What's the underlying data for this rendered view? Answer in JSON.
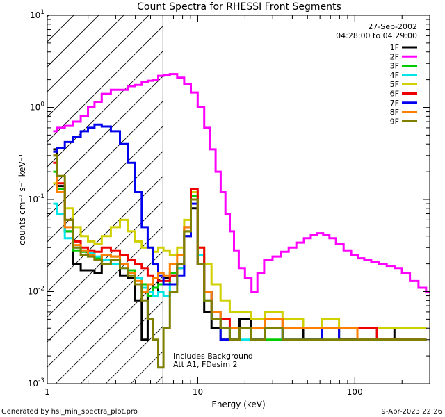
{
  "chart_data": {
    "type": "line",
    "title": "Count Spectra for RHESSI Front Segments",
    "xlabel": "Energy (keV)",
    "ylabel": "counts cm⁻² s⁻¹ keV⁻¹",
    "xscale": "log",
    "yscale": "log",
    "xlim": [
      1.1,
      300
    ],
    "ylim": [
      0.001,
      10
    ],
    "x_ticks": [
      {
        "value": 1,
        "label": "1"
      },
      {
        "value": 10,
        "label": "10"
      },
      {
        "value": 100,
        "label": "100"
      }
    ],
    "y_ticks": [
      {
        "value": 10,
        "base": "10",
        "exp": "1"
      },
      {
        "value": 1,
        "base": "10",
        "exp": "0"
      },
      {
        "value": 0.1,
        "base": "10",
        "exp": "-1"
      },
      {
        "value": 0.01,
        "base": "10",
        "exp": "-2"
      },
      {
        "value": 0.001,
        "base": "10",
        "exp": "-3"
      }
    ],
    "date": "27-Sep-2002",
    "time_range": "04:28:00 to 04:29:00",
    "annotation_lines": [
      "Includes Background",
      "Att A1, FDesim 2"
    ],
    "excluded_region": {
      "from": 1.1,
      "to": 6.0
    },
    "series": [
      {
        "name": "1F",
        "color": "#000000",
        "x": [
          1.2,
          1.35,
          1.5,
          1.7,
          1.9,
          2.1,
          2.3,
          2.6,
          3.0,
          3.4,
          3.8,
          4.2,
          4.6,
          5.0,
          5.4,
          5.8,
          6.3,
          7.0,
          7.8,
          8.6,
          9.5,
          10.5,
          11.5,
          13,
          15,
          17,
          20,
          24,
          30,
          40,
          55,
          70,
          90,
          120,
          160,
          200,
          270
        ],
        "y": [
          0.35,
          0.14,
          0.045,
          0.02,
          0.017,
          0.017,
          0.016,
          0.02,
          0.02,
          0.015,
          0.014,
          0.008,
          0.003,
          0.012,
          0.009,
          0.016,
          0.014,
          0.015,
          0.018,
          0.04,
          0.08,
          0.02,
          0.006,
          0.004,
          0.003,
          0.004,
          0.005,
          0.003,
          0.004,
          0.004,
          0.003,
          0.004,
          0.003,
          0.003,
          0.004,
          0.003,
          0.003
        ]
      },
      {
        "name": "2F",
        "color": "#ff00ff",
        "x": [
          1.2,
          1.35,
          1.5,
          1.7,
          1.9,
          2.1,
          2.3,
          2.6,
          3.0,
          3.4,
          3.8,
          4.2,
          4.6,
          5.0,
          5.4,
          5.8,
          6.3,
          7.0,
          7.8,
          8.6,
          9.5,
          10.5,
          11.5,
          12.5,
          13.5,
          14.5,
          15.5,
          16.5,
          17.5,
          19,
          21,
          23,
          25,
          28,
          32,
          36,
          40,
          45,
          50,
          55,
          60,
          66,
          72,
          80,
          90,
          100,
          110,
          120,
          135,
          150,
          170,
          190,
          210,
          240,
          270,
          300
        ],
        "y": [
          0.55,
          0.6,
          0.63,
          0.7,
          0.8,
          1.0,
          1.15,
          1.4,
          1.55,
          1.55,
          1.7,
          1.75,
          1.9,
          1.95,
          2.0,
          2.2,
          2.25,
          2.3,
          2.1,
          1.8,
          1.45,
          1.0,
          0.6,
          0.35,
          0.2,
          0.12,
          0.07,
          0.045,
          0.028,
          0.018,
          0.014,
          0.01,
          0.016,
          0.022,
          0.024,
          0.027,
          0.03,
          0.034,
          0.038,
          0.041,
          0.043,
          0.041,
          0.038,
          0.033,
          0.028,
          0.025,
          0.023,
          0.022,
          0.021,
          0.02,
          0.019,
          0.018,
          0.016,
          0.013,
          0.011,
          0.01
        ]
      },
      {
        "name": "3F",
        "color": "#00cc00",
        "x": [
          1.2,
          1.35,
          1.5,
          1.7,
          1.9,
          2.1,
          2.3,
          2.6,
          3.0,
          3.4,
          3.8,
          4.2,
          4.6,
          5.0,
          5.4,
          5.8,
          6.3,
          7.0,
          7.8,
          8.6,
          9.5,
          10.5,
          11.5,
          13,
          15,
          17,
          20,
          24,
          30,
          40,
          55,
          70,
          90,
          120,
          160,
          200,
          270
        ],
        "y": [
          0.2,
          0.13,
          0.045,
          0.028,
          0.027,
          0.026,
          0.023,
          0.025,
          0.024,
          0.02,
          0.017,
          0.014,
          0.012,
          0.009,
          0.011,
          0.012,
          0.012,
          0.016,
          0.02,
          0.045,
          0.11,
          0.025,
          0.008,
          0.005,
          0.004,
          0.003,
          0.004,
          0.004,
          0.003,
          0.004,
          0.004,
          0.003,
          0.004,
          0.003,
          0.003,
          0.003,
          0.003
        ]
      },
      {
        "name": "4F",
        "color": "#00e5e5",
        "x": [
          1.2,
          1.35,
          1.5,
          1.7,
          1.9,
          2.1,
          2.3,
          2.6,
          3.0,
          3.4,
          3.8,
          4.2,
          4.6,
          5.0,
          5.4,
          5.8,
          6.3,
          7.0,
          7.8,
          8.6,
          9.5,
          10.5,
          11.5,
          13,
          15,
          17,
          20,
          24,
          30,
          40,
          55,
          70,
          90,
          120,
          160,
          200,
          270
        ],
        "y": [
          0.09,
          0.07,
          0.038,
          0.03,
          0.028,
          0.026,
          0.024,
          0.022,
          0.02,
          0.018,
          0.016,
          0.014,
          0.011,
          0.01,
          0.009,
          0.01,
          0.009,
          0.012,
          0.018,
          0.05,
          0.1,
          0.025,
          0.01,
          0.006,
          0.004,
          0.004,
          0.003,
          0.003,
          0.004,
          0.003,
          0.003,
          0.004,
          0.003,
          0.003,
          0.003,
          0.003,
          0.003
        ]
      },
      {
        "name": "5F",
        "color": "#d0d000",
        "x": [
          1.2,
          1.35,
          1.5,
          1.7,
          1.9,
          2.1,
          2.3,
          2.6,
          3.0,
          3.4,
          3.8,
          4.2,
          4.6,
          5.0,
          5.4,
          5.8,
          6.3,
          7.0,
          7.8,
          8.6,
          9.5,
          10.5,
          11.5,
          13,
          15,
          17,
          20,
          24,
          30,
          40,
          55,
          70,
          90,
          120,
          160,
          200,
          270
        ],
        "y": [
          0.15,
          0.12,
          0.08,
          0.05,
          0.04,
          0.035,
          0.033,
          0.04,
          0.05,
          0.06,
          0.045,
          0.035,
          0.03,
          0.03,
          0.027,
          0.03,
          0.028,
          0.025,
          0.03,
          0.06,
          0.12,
          0.03,
          0.02,
          0.012,
          0.008,
          0.006,
          0.006,
          0.005,
          0.006,
          0.005,
          0.004,
          0.005,
          0.004,
          0.004,
          0.004,
          0.004,
          0.004
        ]
      },
      {
        "name": "6F",
        "color": "#ee0000",
        "x": [
          1.2,
          1.35,
          1.5,
          1.7,
          1.9,
          2.1,
          2.3,
          2.6,
          3.0,
          3.4,
          3.8,
          4.2,
          4.6,
          5.0,
          5.4,
          5.8,
          6.3,
          7.0,
          7.8,
          8.6,
          9.5,
          10.5,
          11.5,
          13,
          15,
          17,
          20,
          24,
          30,
          40,
          55,
          70,
          90,
          120,
          160,
          200,
          270
        ],
        "y": [
          0.25,
          0.15,
          0.06,
          0.035,
          0.03,
          0.028,
          0.027,
          0.03,
          0.028,
          0.025,
          0.022,
          0.02,
          0.018,
          0.015,
          0.014,
          0.013,
          0.013,
          0.015,
          0.02,
          0.05,
          0.13,
          0.03,
          0.01,
          0.006,
          0.005,
          0.004,
          0.004,
          0.004,
          0.005,
          0.004,
          0.004,
          0.004,
          0.003,
          0.004,
          0.003,
          0.003,
          0.003
        ]
      },
      {
        "name": "7F",
        "color": "#0000ee",
        "x": [
          1.2,
          1.35,
          1.5,
          1.7,
          1.9,
          2.1,
          2.3,
          2.6,
          3.0,
          3.4,
          3.8,
          4.2,
          4.6,
          5.0,
          5.4,
          5.8,
          6.3,
          7.0,
          7.8,
          8.6,
          9.5,
          10.5,
          11.5,
          13,
          15,
          17,
          20,
          24,
          30,
          40,
          55,
          70,
          90,
          120,
          160,
          200,
          270
        ],
        "y": [
          0.33,
          0.36,
          0.42,
          0.48,
          0.55,
          0.6,
          0.65,
          0.62,
          0.55,
          0.4,
          0.25,
          0.12,
          0.05,
          0.03,
          0.02,
          0.015,
          0.012,
          0.012,
          0.015,
          0.04,
          0.09,
          0.02,
          0.01,
          0.005,
          0.003,
          0.003,
          0.004,
          0.003,
          0.004,
          0.003,
          0.003,
          0.004,
          0.003,
          0.003,
          0.003,
          0.003,
          0.003
        ]
      },
      {
        "name": "8F",
        "color": "#ff8000",
        "x": [
          1.2,
          1.35,
          1.5,
          1.7,
          1.9,
          2.1,
          2.3,
          2.6,
          3.0,
          3.4,
          3.8,
          4.2,
          4.6,
          5.0,
          5.4,
          5.8,
          6.3,
          7.0,
          7.8,
          8.6,
          9.5,
          10.5,
          11.5,
          13,
          15,
          17,
          20,
          24,
          30,
          40,
          55,
          70,
          90,
          120,
          160,
          200,
          270
        ],
        "y": [
          0.3,
          0.12,
          0.05,
          0.032,
          0.028,
          0.025,
          0.022,
          0.025,
          0.024,
          0.02,
          0.016,
          0.013,
          0.01,
          0.012,
          0.014,
          0.016,
          0.015,
          0.02,
          0.025,
          0.05,
          0.1,
          0.02,
          0.01,
          0.006,
          0.004,
          0.004,
          0.004,
          0.004,
          0.005,
          0.004,
          0.004,
          0.004,
          0.004,
          0.003,
          0.003,
          0.003,
          0.003
        ]
      },
      {
        "name": "9F",
        "color": "#808000",
        "x": [
          1.2,
          1.35,
          1.5,
          1.7,
          1.9,
          2.1,
          2.3,
          2.6,
          3.0,
          3.4,
          3.8,
          4.2,
          4.6,
          5.0,
          5.4,
          5.8,
          6.3,
          7.0,
          7.8,
          8.6,
          9.5,
          10.5,
          11.5,
          13,
          15,
          17,
          20,
          24,
          30,
          40,
          55,
          70,
          90,
          120,
          160,
          200,
          270
        ],
        "y": [
          0.3,
          0.18,
          0.06,
          0.03,
          0.025,
          0.024,
          0.022,
          0.02,
          0.022,
          0.018,
          0.015,
          0.012,
          0.008,
          0.005,
          0.003,
          0.0015,
          0.004,
          0.01,
          0.02,
          0.045,
          0.1,
          0.02,
          0.008,
          0.005,
          0.004,
          0.003,
          0.004,
          0.003,
          0.004,
          0.003,
          0.003,
          0.003,
          0.003,
          0.003,
          0.003,
          0.003,
          0.003
        ]
      }
    ]
  },
  "footer": {
    "generated_by": "Generated by hsi_min_spectra_plot.pro",
    "timestamp": "9-Apr-2023 22:26"
  }
}
